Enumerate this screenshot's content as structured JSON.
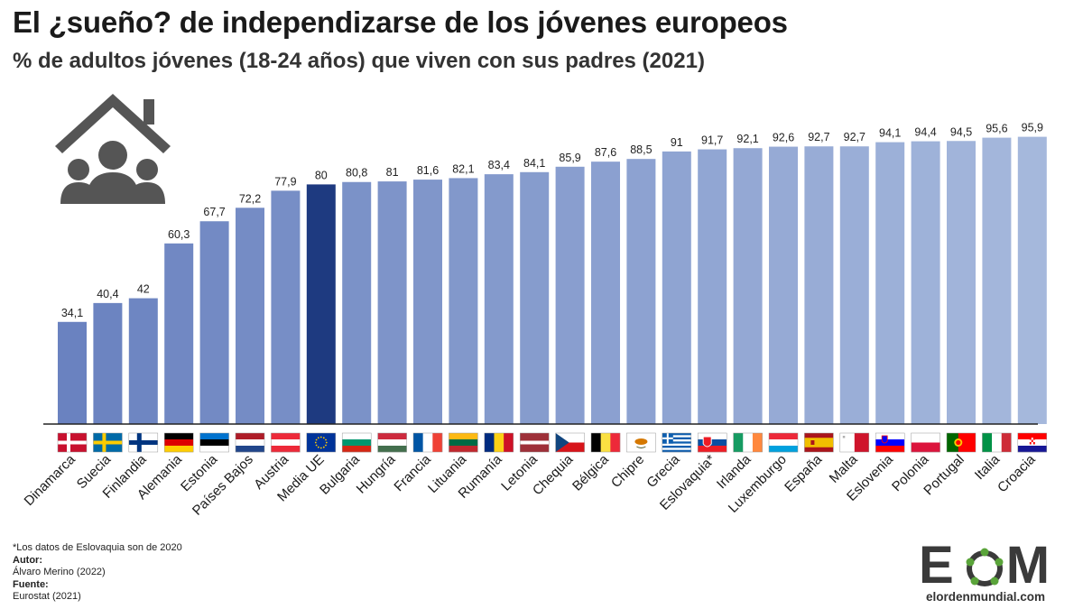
{
  "title": "El ¿sueño? de independizarse de los jóvenes europeos",
  "subtitle": "% de adultos jóvenes (18-24 años) que viven con sus padres (2021)",
  "notes": {
    "footnote": "*Los datos de Eslovaquia son de 2020",
    "author_label": "Autor:",
    "author": "Álvaro Merino (2022)",
    "source_label": "Fuente:",
    "source": "Eurostat (2021)"
  },
  "logo": {
    "letter_e": "E",
    "letter_m": "M",
    "url": "elordenmundial.com"
  },
  "icon": "house-family-icon",
  "colors": {
    "bar_low": "#6a82c0",
    "bar_high": "#a5b8dc",
    "highlight": "#1e3a80",
    "text": "#1a1a1a"
  },
  "chart_data": {
    "type": "bar",
    "title": "El ¿sueño? de independizarse de los jóvenes europeos",
    "subtitle": "% de adultos jóvenes (18-24 años) que viven con sus padres (2021)",
    "categories": [
      "Dinamarca",
      "Suecia",
      "Finlandia",
      "Alemania",
      "Estonia",
      "Países Bajos",
      "Austria",
      "Media UE",
      "Bulgaria",
      "Hungría",
      "Francia",
      "Lituania",
      "Rumanía",
      "Letonia",
      "Chequia",
      "Bélgica",
      "Chipre",
      "Grecia",
      "Eslovaquia*",
      "Irlanda",
      "Luxemburgo",
      "España",
      "Malta",
      "Eslovenia",
      "Polonia",
      "Portugal",
      "Italia",
      "Croacia"
    ],
    "values": [
      34.1,
      40.4,
      42,
      60.3,
      67.7,
      72.2,
      77.9,
      80,
      80.8,
      81,
      81.6,
      82.1,
      83.4,
      84.1,
      85.9,
      87.6,
      88.5,
      91,
      91.7,
      92.1,
      92.6,
      92.7,
      92.7,
      94.1,
      94.4,
      94.5,
      95.6,
      95.9
    ],
    "value_labels": [
      "34,1",
      "40,4",
      "42",
      "60,3",
      "67,7",
      "72,2",
      "77,9",
      "80",
      "80,8",
      "81",
      "81,6",
      "82,1",
      "83,4",
      "84,1",
      "85,9",
      "87,6",
      "88,5",
      "91",
      "91,7",
      "92,1",
      "92,6",
      "92,7",
      "92,7",
      "94,1",
      "94,4",
      "94,5",
      "95,6",
      "95,9"
    ],
    "highlight": "Media UE",
    "flags": [
      "Dinamarca",
      "Suecia",
      "Finlandia",
      "Alemania",
      "Estonia",
      "Países Bajos",
      "Austria",
      "Unión Europea",
      "Bulgaria",
      "Hungría",
      "Francia",
      "Lituania",
      "Rumanía",
      "Letonia",
      "Chequia",
      "Bélgica",
      "Chipre",
      "Grecia",
      "Eslovaquia",
      "Irlanda",
      "Luxemburgo",
      "España",
      "Malta",
      "Eslovenia",
      "Polonia",
      "Portugal",
      "Italia",
      "Croacia"
    ],
    "ylim": [
      0,
      100
    ],
    "xlabel": "",
    "ylabel": "",
    "grid": false,
    "legend": "none"
  }
}
